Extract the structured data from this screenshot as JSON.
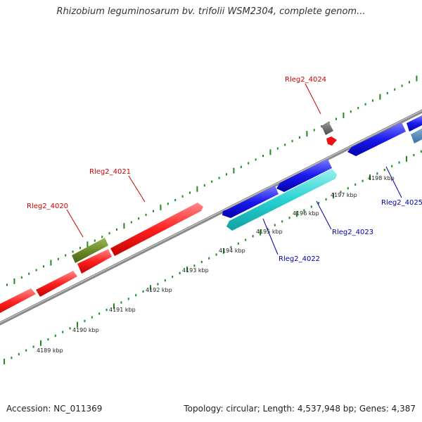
{
  "title": "Rhizobium leguminosarum bv. trifolii WSM2304, complete genom...",
  "footer": {
    "accession": "Accession: NC_011369",
    "summary": "Topology: circular; Length: 4,537,948 bp; Genes: 4,387"
  },
  "colors": {
    "forward_gene": "#ff2222",
    "reverse_gene": "#1a1aee",
    "rna_gene": "#28d2d2",
    "olive_gene": "#6e8c28",
    "grey_gene": "#6a6a6a",
    "tick": "#1e8c1e",
    "backbone": "#888888",
    "forward_label": "#cc0000",
    "reverse_label": "#0000aa"
  },
  "scale": {
    "tick_labels": [
      "4189 kbp",
      "4190 kbp",
      "4191 kbp",
      "4192 kbp",
      "4193 kbp",
      "4194 kbp",
      "4195 kbp",
      "4196 kbp",
      "4197 kbp",
      "4198 kbp"
    ]
  },
  "labels": {
    "forward": [
      "Rleg2_4020",
      "Rleg2_4021",
      "Rleg2_4024"
    ],
    "reverse": [
      "Rleg2_4022",
      "Rleg2_4023",
      "Rleg2_4025"
    ]
  }
}
